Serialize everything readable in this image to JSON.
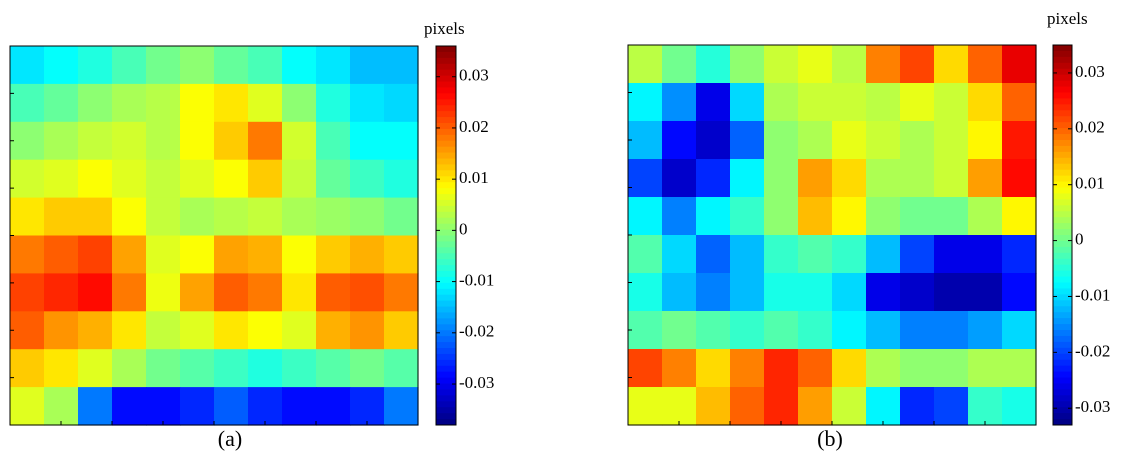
{
  "chart_data": [
    {
      "type": "heatmap",
      "caption": "(a)",
      "colorbar_label": "pixels",
      "colormap": "jet",
      "clim": [
        -0.038,
        0.036
      ],
      "cticks": [
        0.03,
        0.02,
        0.01,
        0,
        -0.01,
        -0.02,
        -0.03
      ],
      "z": [
        [
          -0.012,
          -0.01,
          -0.008,
          -0.005,
          -0.002,
          0,
          -0.003,
          -0.005,
          -0.01,
          -0.012,
          -0.015,
          -0.015
        ],
        [
          -0.005,
          -0.003,
          0,
          0.002,
          0.003,
          0.008,
          0.01,
          0.006,
          0,
          -0.008,
          -0.012,
          -0.013
        ],
        [
          0,
          0.002,
          0.004,
          0.005,
          0.003,
          0.008,
          0.012,
          0.018,
          0.005,
          -0.005,
          -0.01,
          -0.01
        ],
        [
          0.005,
          0.006,
          0.008,
          0.006,
          0.004,
          0.006,
          0.008,
          0.012,
          0.004,
          -0.003,
          -0.006,
          -0.008
        ],
        [
          0.01,
          0.012,
          0.012,
          0.008,
          0.004,
          0.002,
          0.003,
          0.004,
          0.002,
          0.001,
          0,
          -0.002
        ],
        [
          0.018,
          0.02,
          0.022,
          0.015,
          0.006,
          0.008,
          0.015,
          0.014,
          0.008,
          0.012,
          0.014,
          0.012
        ],
        [
          0.022,
          0.024,
          0.026,
          0.018,
          0.007,
          0.015,
          0.02,
          0.018,
          0.01,
          0.02,
          0.021,
          0.018
        ],
        [
          0.02,
          0.016,
          0.014,
          0.01,
          0.004,
          0.006,
          0.01,
          0.008,
          0.006,
          0.014,
          0.016,
          0.012
        ],
        [
          0.012,
          0.01,
          0.006,
          0.002,
          -0.002,
          -0.004,
          -0.006,
          -0.008,
          -0.006,
          -0.004,
          -0.002,
          -0.004
        ],
        [
          0.006,
          0.002,
          -0.02,
          -0.028,
          -0.028,
          -0.026,
          -0.022,
          -0.026,
          -0.028,
          -0.028,
          -0.026,
          -0.02
        ]
      ]
    },
    {
      "type": "heatmap",
      "caption": "(b)",
      "colorbar_label": "pixels",
      "colormap": "jet",
      "clim": [
        -0.033,
        0.035
      ],
      "cticks": [
        0.03,
        0.02,
        0.01,
        0,
        -0.01,
        -0.02,
        -0.03
      ],
      "z": [
        [
          0.005,
          0,
          -0.005,
          0.002,
          0.006,
          0.008,
          0.005,
          0.018,
          0.022,
          0.012,
          0.02,
          0.028
        ],
        [
          -0.008,
          -0.015,
          -0.026,
          -0.01,
          0.004,
          0.006,
          0.006,
          0.005,
          0.008,
          0.006,
          0.012,
          0.02
        ],
        [
          -0.012,
          -0.024,
          -0.028,
          -0.018,
          0.002,
          0.004,
          0.008,
          0.006,
          0.004,
          0.006,
          0.01,
          0.025
        ],
        [
          -0.02,
          -0.028,
          -0.022,
          -0.008,
          0.002,
          0.016,
          0.012,
          0.004,
          0.004,
          0.006,
          0.016,
          0.026
        ],
        [
          -0.008,
          -0.016,
          -0.008,
          -0.004,
          0.002,
          0.014,
          0.01,
          0.002,
          0,
          0,
          0.004,
          0.01
        ],
        [
          -0.002,
          -0.01,
          -0.018,
          -0.012,
          -0.004,
          -0.002,
          -0.004,
          -0.012,
          -0.02,
          -0.026,
          -0.026,
          -0.022
        ],
        [
          -0.006,
          -0.012,
          -0.016,
          -0.012,
          -0.006,
          -0.006,
          -0.01,
          -0.026,
          -0.028,
          -0.03,
          -0.03,
          -0.024
        ],
        [
          -0.002,
          0,
          -0.002,
          -0.004,
          -0.002,
          -0.004,
          -0.008,
          -0.012,
          -0.016,
          -0.016,
          -0.014,
          -0.01
        ],
        [
          0.022,
          0.018,
          0.012,
          0.018,
          0.024,
          0.02,
          0.012,
          0.004,
          0.002,
          0.002,
          0.004,
          0.004
        ],
        [
          0.008,
          0.008,
          0.014,
          0.02,
          0.024,
          0.016,
          0.006,
          -0.008,
          -0.022,
          -0.02,
          -0.004,
          -0.006
        ]
      ]
    }
  ]
}
